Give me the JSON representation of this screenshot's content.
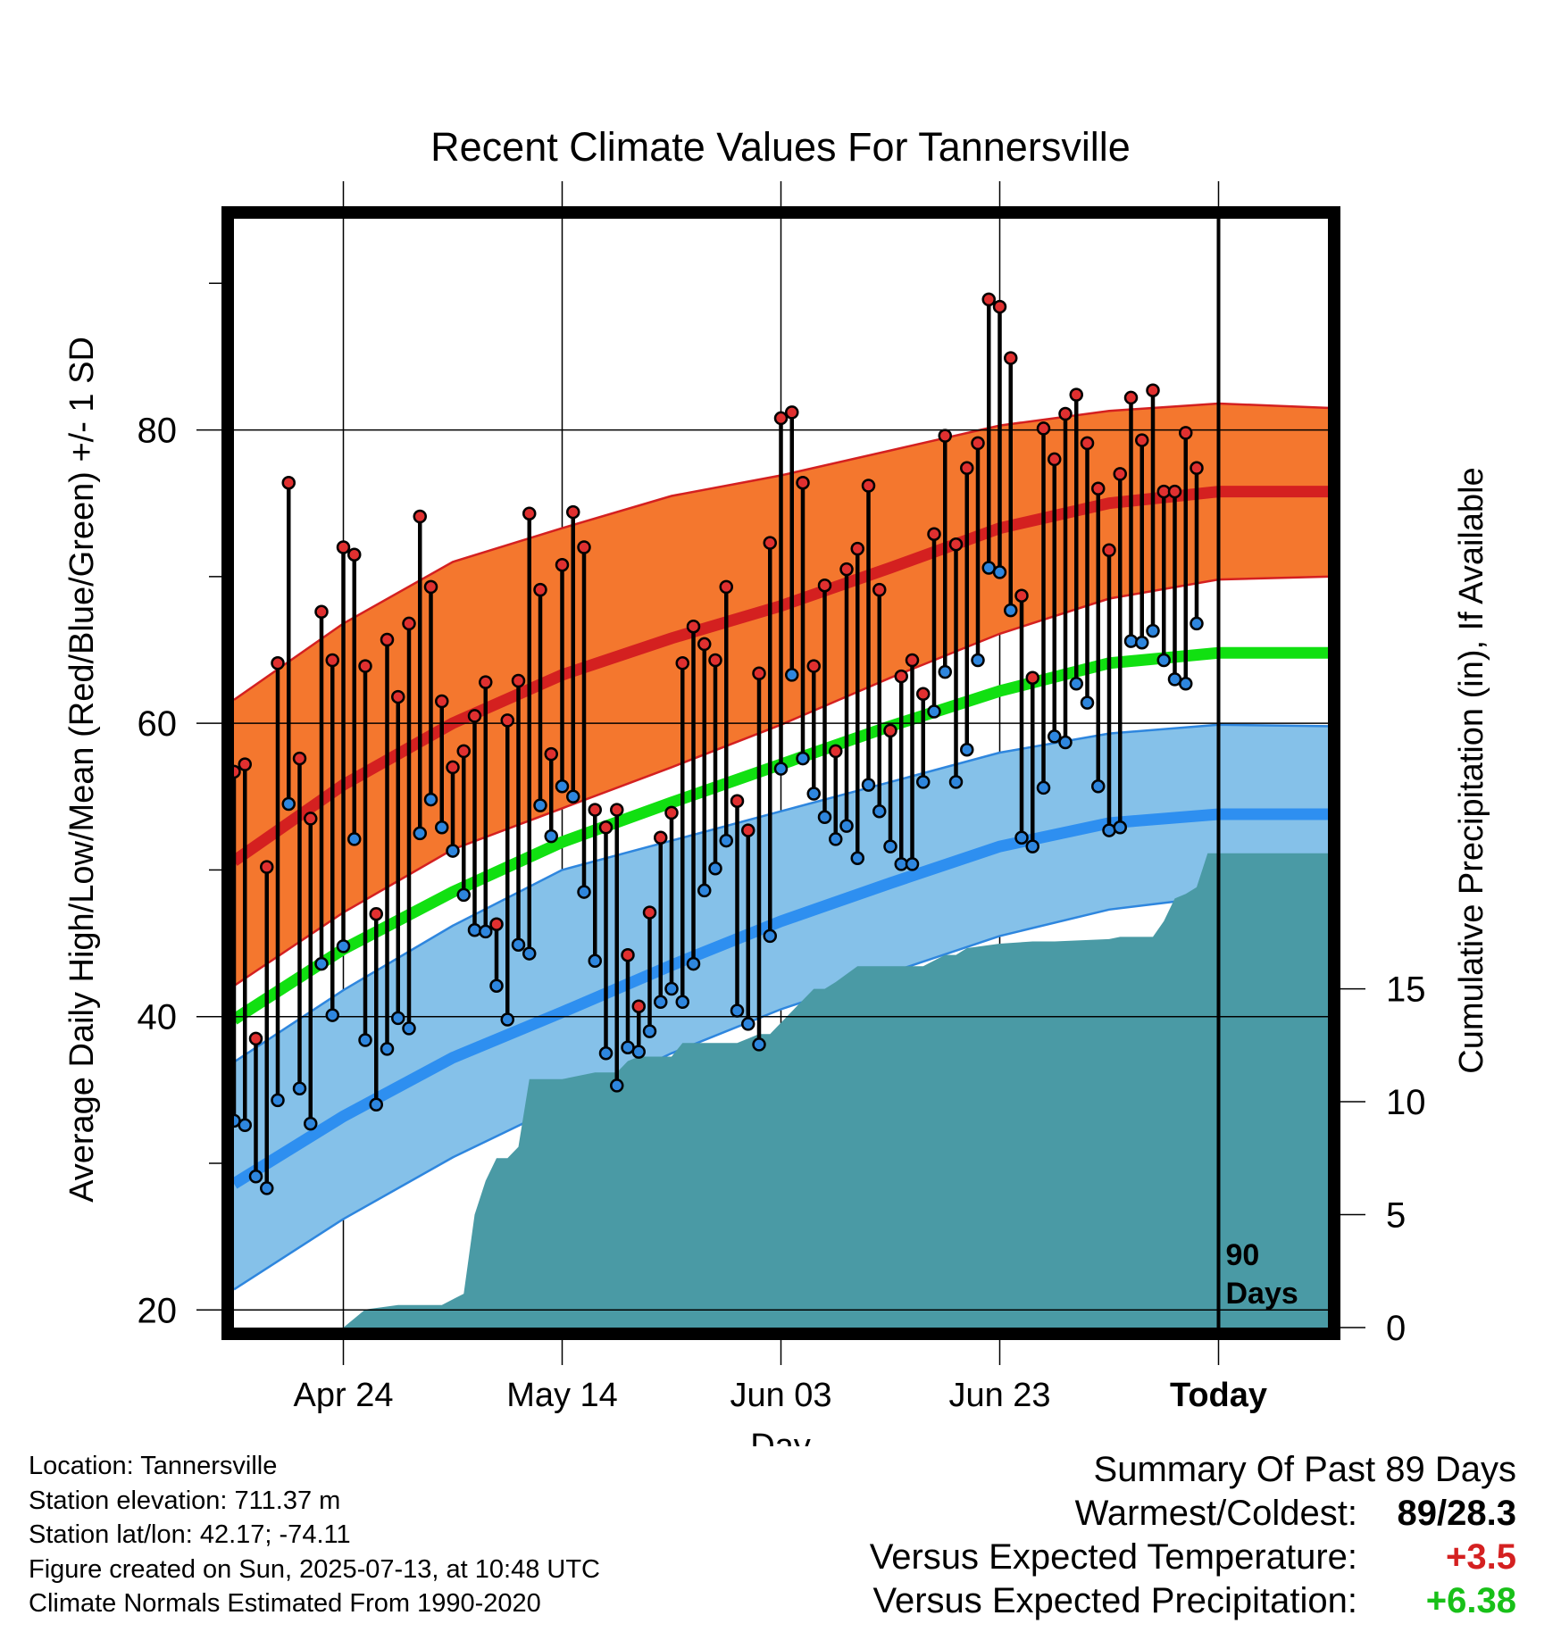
{
  "chart_data": {
    "type": "line",
    "title": "Recent Climate Values For Tannersville",
    "xlabel": "Day",
    "ylabel": "Average Daily High/Low/Mean (Red/Blue/Green) +/- 1 SD",
    "y2label": "Cumulative Precipitation (in), If Available",
    "ylim": [
      18.8,
      94.4
    ],
    "y_ticks": [
      20,
      40,
      60,
      80
    ],
    "y2lim": [
      0,
      49.1
    ],
    "y2_ticks": [
      0,
      5,
      10,
      15
    ],
    "x_start": "2025-04-14",
    "x_end": "2025-07-23",
    "x_ticks": [
      {
        "date": "2025-04-24",
        "label": "Apr 24"
      },
      {
        "date": "2025-05-14",
        "label": "May 14"
      },
      {
        "date": "2025-06-03",
        "label": "Jun 03"
      },
      {
        "date": "2025-06-23",
        "label": "Jun 23"
      },
      {
        "date": "2025-07-13",
        "label": "Today"
      }
    ],
    "today_marker": {
      "date": "2025-07-13",
      "label_line1": "90",
      "label_line2": "Days"
    },
    "grid": true,
    "normals": {
      "dates": [
        "2025-04-14",
        "2025-04-24",
        "2025-05-04",
        "2025-05-14",
        "2025-05-24",
        "2025-06-03",
        "2025-06-13",
        "2025-06-23",
        "2025-07-03",
        "2025-07-13",
        "2025-07-23"
      ],
      "high_mean": [
        50.6,
        55.8,
        60.0,
        63.3,
        65.8,
        68.0,
        70.6,
        73.3,
        75.0,
        75.8,
        75.8
      ],
      "high_upper": [
        61.6,
        66.8,
        71.0,
        73.3,
        75.5,
        76.9,
        78.6,
        80.3,
        81.3,
        81.8,
        81.5
      ],
      "high_lower": [
        42.1,
        47.1,
        51.4,
        54.2,
        57.0,
        59.9,
        63.1,
        66.1,
        68.5,
        69.8,
        70.0
      ],
      "mean": [
        39.8,
        44.6,
        48.5,
        51.9,
        54.6,
        57.2,
        59.8,
        62.2,
        64.1,
        64.8,
        64.8
      ],
      "low_mean": [
        28.6,
        33.2,
        37.2,
        40.3,
        43.5,
        46.5,
        49.1,
        51.6,
        53.2,
        53.8,
        53.8
      ],
      "low_upper": [
        36.9,
        41.8,
        46.2,
        50.0,
        52.0,
        54.0,
        56.0,
        58.0,
        59.3,
        59.9,
        59.8
      ],
      "low_lower": [
        21.4,
        26.2,
        30.4,
        34.0,
        37.5,
        40.5,
        43.0,
        45.5,
        47.3,
        48.2,
        48.3
      ]
    },
    "series": [
      {
        "name": "High",
        "color": "#e03030",
        "start_date": "2025-04-14",
        "values": [
          56.7,
          57.2,
          38.5,
          50.2,
          64.1,
          76.4,
          57.6,
          53.5,
          67.6,
          64.3,
          72.0,
          71.5,
          63.9,
          47.0,
          65.7,
          61.8,
          66.8,
          74.1,
          69.3,
          61.5,
          57.0,
          58.1,
          60.5,
          62.8,
          46.3,
          60.2,
          62.9,
          74.3,
          69.1,
          57.9,
          70.8,
          74.4,
          72.0,
          54.1,
          52.9,
          54.1,
          44.2,
          40.7,
          47.1,
          52.2,
          53.9,
          64.1,
          66.6,
          65.4,
          64.3,
          69.3,
          54.7,
          52.7,
          63.4,
          72.3,
          80.8,
          81.2,
          76.4,
          63.9,
          69.4,
          58.1,
          70.5,
          71.9,
          76.2,
          69.1,
          59.5,
          63.2,
          64.3,
          62.0,
          72.9,
          79.6,
          72.2,
          77.4,
          79.1,
          88.9,
          88.4,
          84.9,
          68.7,
          63.1,
          80.1,
          78.0,
          81.1,
          82.4,
          79.1,
          76.0,
          71.8,
          77.0,
          82.2,
          79.3,
          82.7,
          75.8,
          75.8,
          79.8,
          77.4
        ]
      },
      {
        "name": "Low",
        "color": "#2e86de",
        "start_date": "2025-04-14",
        "values": [
          32.9,
          32.6,
          29.1,
          28.3,
          34.3,
          54.5,
          35.1,
          32.7,
          43.6,
          40.1,
          44.8,
          52.1,
          38.4,
          34.0,
          37.8,
          39.9,
          39.2,
          52.5,
          54.8,
          52.9,
          51.3,
          48.3,
          45.9,
          45.8,
          42.1,
          39.8,
          44.9,
          44.3,
          54.4,
          52.3,
          55.7,
          55.0,
          48.5,
          43.8,
          37.5,
          35.3,
          37.9,
          37.6,
          39.0,
          41.0,
          41.9,
          41.0,
          43.6,
          48.6,
          50.1,
          52.0,
          40.4,
          39.5,
          38.1,
          45.5,
          56.9,
          63.3,
          57.6,
          55.2,
          53.6,
          52.1,
          53.0,
          50.8,
          55.8,
          54.0,
          51.6,
          50.4,
          50.4,
          56.0,
          60.8,
          63.5,
          56.0,
          58.2,
          64.3,
          70.6,
          70.3,
          67.7,
          52.2,
          51.6,
          55.6,
          59.1,
          58.7,
          62.7,
          61.4,
          55.7,
          52.7,
          52.9,
          65.6,
          65.5,
          66.3,
          64.3,
          63.0,
          62.7,
          66.8
        ]
      }
    ],
    "precipitation": {
      "name": "Cumulative Precipitation",
      "color": "#4a9aa5",
      "dates": [
        "2025-04-14",
        "2025-04-24",
        "2025-04-26",
        "2025-04-29",
        "2025-05-03",
        "2025-05-05",
        "2025-05-06",
        "2025-05-07",
        "2025-05-08",
        "2025-05-09",
        "2025-05-10",
        "2025-05-11",
        "2025-05-12",
        "2025-05-13",
        "2025-05-14",
        "2025-05-17",
        "2025-05-19",
        "2025-05-20",
        "2025-05-21",
        "2025-05-24",
        "2025-05-25",
        "2025-05-26",
        "2025-05-30",
        "2025-05-31",
        "2025-06-01",
        "2025-06-02",
        "2025-06-05",
        "2025-06-06",
        "2025-06-07",
        "2025-06-08",
        "2025-06-10",
        "2025-06-16",
        "2025-06-18",
        "2025-06-19",
        "2025-06-20",
        "2025-06-23",
        "2025-06-26",
        "2025-06-28",
        "2025-07-03",
        "2025-07-04",
        "2025-07-05",
        "2025-07-06",
        "2025-07-07",
        "2025-07-08",
        "2025-07-09",
        "2025-07-10",
        "2025-07-11",
        "2025-07-12",
        "2025-07-13",
        "2025-07-23"
      ],
      "values": [
        0.0,
        0.0,
        0.8,
        1.0,
        1.0,
        1.5,
        5.0,
        6.5,
        7.5,
        7.5,
        8.0,
        11.0,
        11.0,
        11.0,
        11.0,
        11.3,
        11.3,
        11.8,
        12.0,
        12.0,
        12.6,
        12.6,
        12.6,
        12.8,
        13.0,
        13.0,
        14.5,
        15.0,
        15.0,
        15.3,
        16.0,
        16.0,
        16.5,
        16.5,
        16.8,
        17.0,
        17.1,
        17.1,
        17.2,
        17.3,
        17.3,
        17.3,
        17.3,
        18.0,
        19.0,
        19.2,
        19.5,
        21.0,
        21.0,
        21.0
      ]
    }
  },
  "footer": {
    "location": "Location: Tannersville",
    "elevation": "Station elevation: 711.37 m",
    "latlon": "Station lat/lon: 42.17; -74.11",
    "created": "Figure created on Sun, 2025-07-13, at 10:48 UTC",
    "normals": "Climate Normals Estimated From 1990-2020"
  },
  "summary": {
    "title": "Summary Of Past 89 Days",
    "warmest_label": "Warmest/Coldest:",
    "warmest_value": "89/28.3",
    "temp_label": "Versus Expected Temperature:",
    "temp_value": "+3.5",
    "temp_color": "#d42020",
    "precip_label": "Versus Expected Precipitation:",
    "precip_value": "+6.38",
    "precip_color": "#18c018"
  }
}
